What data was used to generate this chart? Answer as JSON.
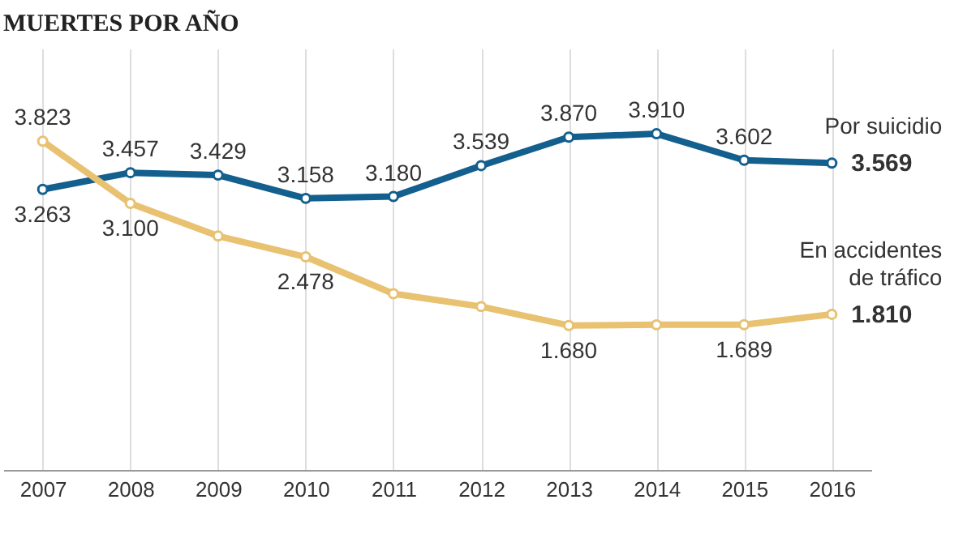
{
  "chart_data": {
    "type": "line",
    "title": "MUERTES POR AÑO",
    "categories": [
      "2007",
      "2008",
      "2009",
      "2010",
      "2011",
      "2012",
      "2013",
      "2014",
      "2015",
      "2016"
    ],
    "series": [
      {
        "name": "Por suicidio",
        "color": "#135f8e",
        "values": [
          3263,
          3457,
          3429,
          3158,
          3180,
          3539,
          3870,
          3910,
          3602,
          3569
        ],
        "value_labels": [
          "3.263",
          "3.457",
          "3.429",
          "3.158",
          "3.180",
          "3.539",
          "3.870",
          "3.910",
          "3.602",
          "3.569"
        ]
      },
      {
        "name": "En accidentes\nde tráfico",
        "color": "#e8c171",
        "values": [
          3823,
          3100,
          2720,
          2478,
          2050,
          1900,
          1680,
          1688,
          1689,
          1810
        ],
        "value_labels": [
          "3.823",
          "3.100",
          null,
          "2.478",
          null,
          null,
          "1.680",
          null,
          "1.689",
          "1.810"
        ]
      }
    ],
    "ylim": [
      0,
      4900
    ],
    "tick_labels": "x",
    "grid": "x",
    "marker": "circle"
  }
}
